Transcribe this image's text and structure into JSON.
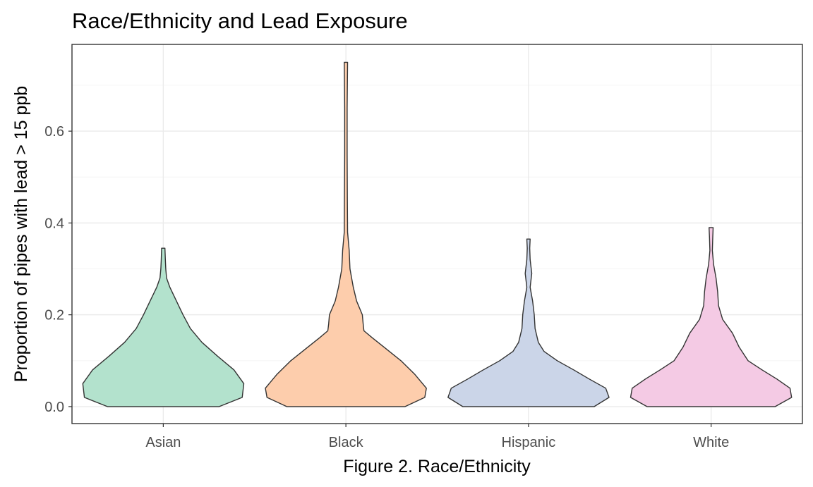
{
  "chart_data": {
    "type": "violin",
    "title": "Race/Ethnicity and Lead Exposure",
    "xlabel": "Figure 2. Race/Ethnicity",
    "ylabel": "Proportion of pipes with lead > 15 ppb",
    "ylim": [
      -0.037,
      0.789
    ],
    "yticks": [
      0.0,
      0.2,
      0.4,
      0.6
    ],
    "ytick_labels": [
      "0.0",
      "0.2",
      "0.4",
      "0.6"
    ],
    "categories": [
      "Asian",
      "Black",
      "Hispanic",
      "White"
    ],
    "grid": true,
    "legend": "none",
    "series": [
      {
        "category": "Asian",
        "color": "#b3e2cd",
        "profile": [
          [
            0.0,
            0.68
          ],
          [
            0.02,
            0.96
          ],
          [
            0.05,
            0.98
          ],
          [
            0.08,
            0.86
          ],
          [
            0.11,
            0.66
          ],
          [
            0.14,
            0.47
          ],
          [
            0.17,
            0.33
          ],
          [
            0.2,
            0.24
          ],
          [
            0.23,
            0.16
          ],
          [
            0.26,
            0.08
          ],
          [
            0.28,
            0.04
          ],
          [
            0.3,
            0.03
          ],
          [
            0.32,
            0.025
          ],
          [
            0.345,
            0.02
          ]
        ]
      },
      {
        "category": "Black",
        "color": "#fdcdac",
        "profile": [
          [
            0.0,
            0.72
          ],
          [
            0.02,
            0.96
          ],
          [
            0.04,
            0.98
          ],
          [
            0.07,
            0.84
          ],
          [
            0.1,
            0.67
          ],
          [
            0.13,
            0.46
          ],
          [
            0.15,
            0.32
          ],
          [
            0.165,
            0.22
          ],
          [
            0.18,
            0.21
          ],
          [
            0.2,
            0.2
          ],
          [
            0.23,
            0.13
          ],
          [
            0.26,
            0.09
          ],
          [
            0.3,
            0.05
          ],
          [
            0.34,
            0.04
          ],
          [
            0.38,
            0.02
          ],
          [
            0.45,
            0.018
          ],
          [
            0.55,
            0.015
          ],
          [
            0.65,
            0.015
          ],
          [
            0.75,
            0.02
          ]
        ]
      },
      {
        "category": "Hispanic",
        "color": "#cbd5e8",
        "profile": [
          [
            0.0,
            0.8
          ],
          [
            0.02,
            0.98
          ],
          [
            0.04,
            0.94
          ],
          [
            0.06,
            0.74
          ],
          [
            0.08,
            0.55
          ],
          [
            0.1,
            0.35
          ],
          [
            0.12,
            0.19
          ],
          [
            0.14,
            0.12
          ],
          [
            0.17,
            0.08
          ],
          [
            0.2,
            0.07
          ],
          [
            0.23,
            0.05
          ],
          [
            0.26,
            0.02
          ],
          [
            0.29,
            0.04
          ],
          [
            0.32,
            0.02
          ],
          [
            0.345,
            0.015
          ],
          [
            0.365,
            0.02
          ]
        ]
      },
      {
        "category": "White",
        "color": "#f4cae4",
        "profile": [
          [
            0.0,
            0.78
          ],
          [
            0.02,
            0.98
          ],
          [
            0.04,
            0.96
          ],
          [
            0.06,
            0.8
          ],
          [
            0.08,
            0.62
          ],
          [
            0.1,
            0.45
          ],
          [
            0.13,
            0.34
          ],
          [
            0.16,
            0.26
          ],
          [
            0.19,
            0.14
          ],
          [
            0.22,
            0.09
          ],
          [
            0.25,
            0.08
          ],
          [
            0.28,
            0.06
          ],
          [
            0.31,
            0.03
          ],
          [
            0.34,
            0.015
          ],
          [
            0.37,
            0.02
          ],
          [
            0.39,
            0.025
          ]
        ]
      }
    ]
  }
}
